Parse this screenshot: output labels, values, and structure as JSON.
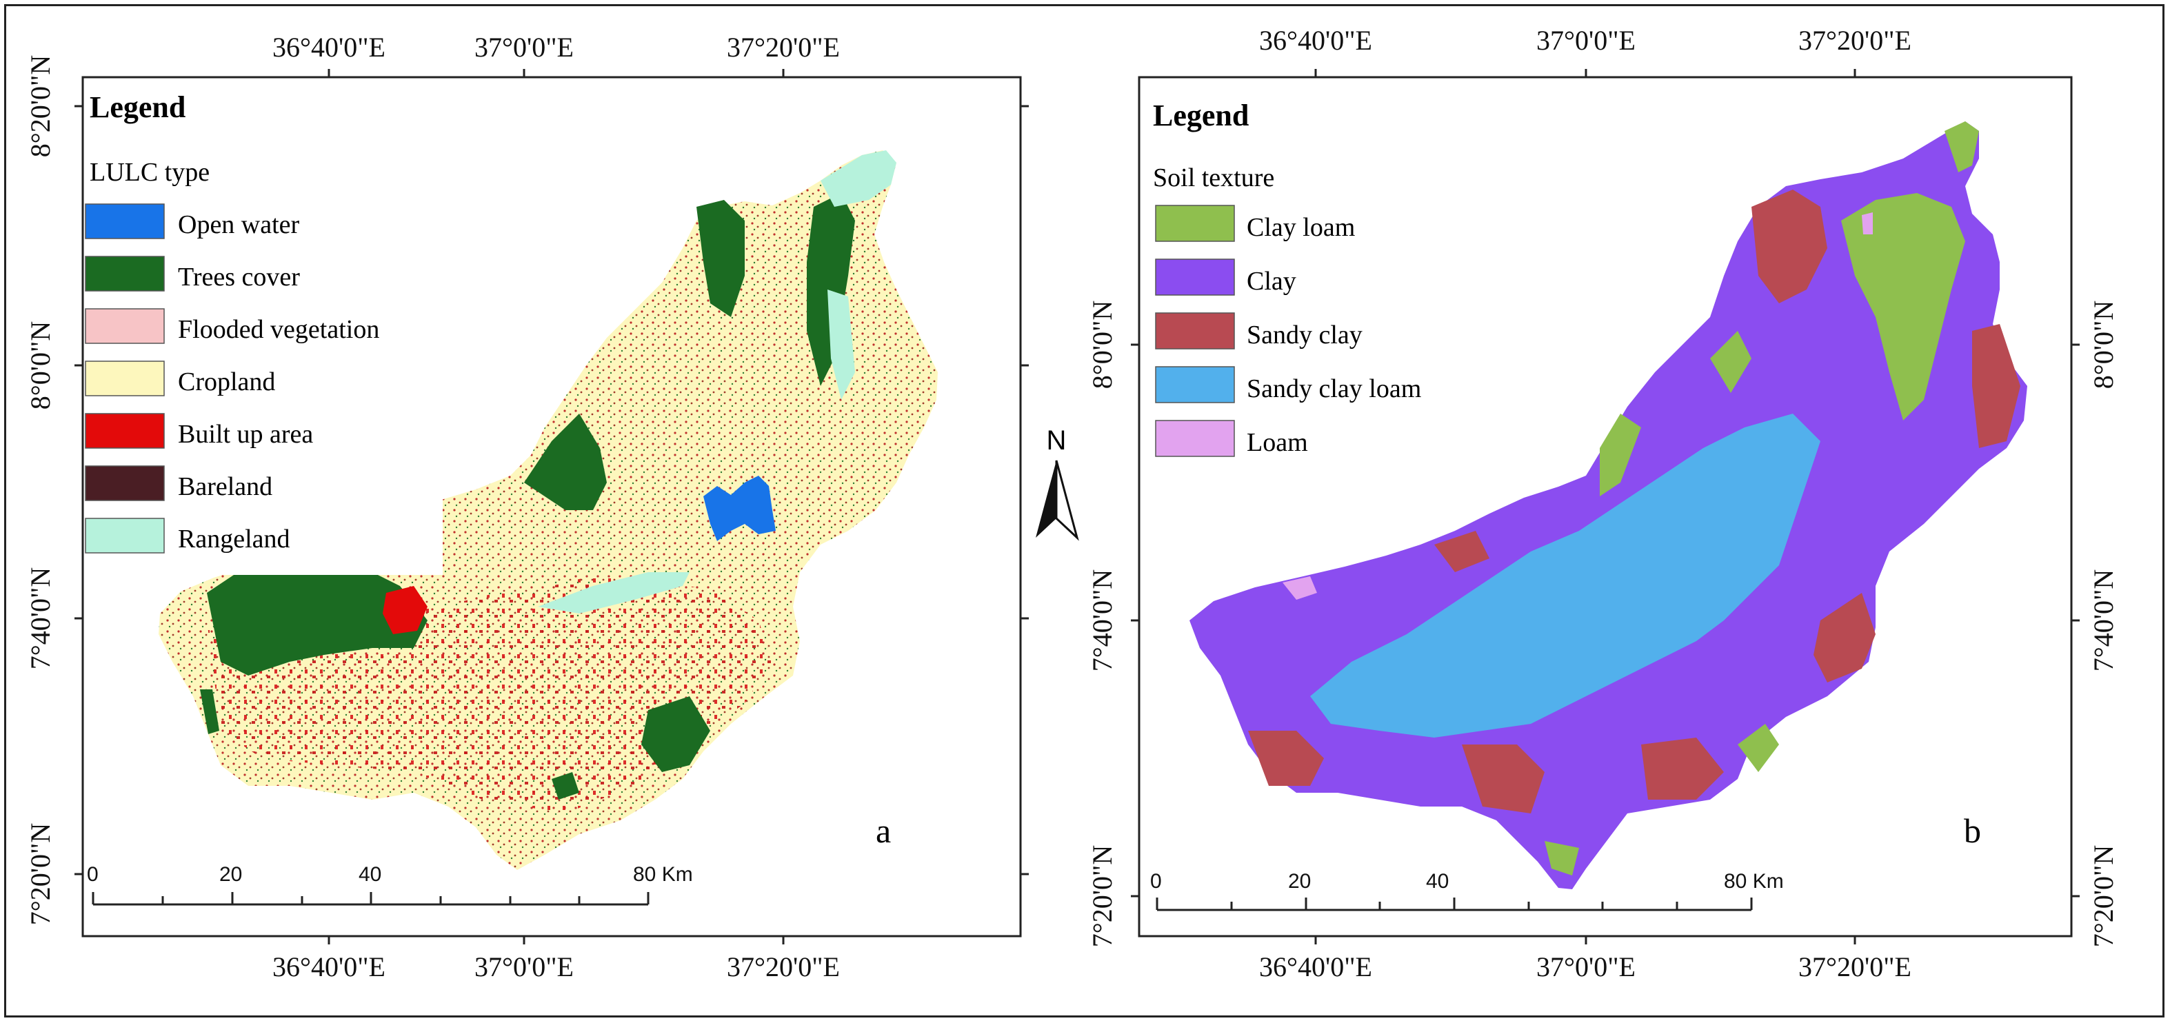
{
  "panel_a": {
    "letter": "a",
    "top_lon_labels": [
      "36°40'0\"E",
      "37°0'0\"E",
      "37°20'0\"E"
    ],
    "bottom_lon_labels": [
      "36°40'0\"E",
      "37°0'0\"E",
      "37°20'0\"E"
    ],
    "lat_labels": [
      "8°20'0\"N",
      "8°0'0\"N",
      "7°40'0\"N",
      "7°20'0\"N"
    ],
    "legend": {
      "title": "Legend",
      "subtitle": "LULC type",
      "items": [
        {
          "label": "Open water",
          "color": "#1874e8"
        },
        {
          "label": "Trees cover",
          "color": "#1b6b22"
        },
        {
          "label": "Flooded vegetation",
          "color": "#f7c4c6"
        },
        {
          "label": "Cropland",
          "color": "#fdf7bd"
        },
        {
          "label": "Built up area",
          "color": "#e30a0a"
        },
        {
          "label": "Bareland",
          "color": "#4a1e24"
        },
        {
          "label": "Rangeland",
          "color": "#b6f2dc"
        }
      ]
    },
    "scale": {
      "labels": [
        "0",
        "20",
        "40",
        "80 Km"
      ]
    }
  },
  "panel_b": {
    "letter": "b",
    "top_lon_labels": [
      "36°40'0\"E",
      "37°0'0\"E",
      "37°20'0\"E"
    ],
    "bottom_lon_labels": [
      "36°40'0\"E",
      "37°0'0\"E",
      "37°20'0\"E"
    ],
    "lat_labels": [
      "8°0'0\"N",
      "7°40'0\"N",
      "7°20'0\"N"
    ],
    "legend": {
      "title": "Legend",
      "subtitle": "Soil texture",
      "items": [
        {
          "label": "Clay loam",
          "color": "#8fbf4e"
        },
        {
          "label": "Clay",
          "color": "#8b4df0"
        },
        {
          "label": "Sandy clay",
          "color": "#b84a52"
        },
        {
          "label": "Sandy clay loam",
          "color": "#52b0ec"
        },
        {
          "label": "Loam",
          "color": "#e2a3ef"
        }
      ]
    },
    "scale": {
      "labels": [
        "0",
        "20",
        "40",
        "80 Km"
      ]
    }
  },
  "north_arrow": {
    "label": "N"
  }
}
